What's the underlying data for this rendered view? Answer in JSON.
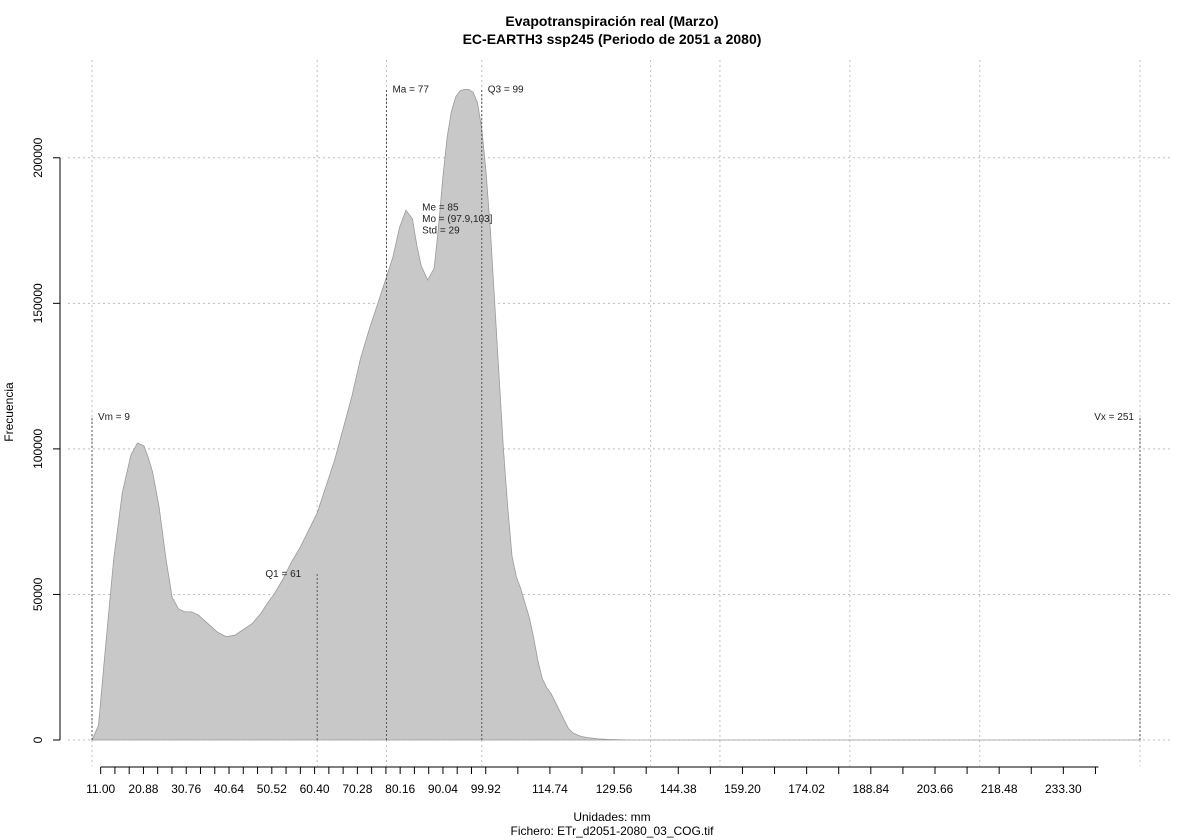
{
  "chart_data": {
    "type": "area",
    "title": "Evapotranspiración real (Marzo)",
    "subtitle": "EC-EARTH3 ssp245 (Periodo de 2051 a 2080)",
    "xlabel": "Unidades: mm",
    "footer": "Fichero: ETr_d2051-2080_03_COG.tif",
    "ylabel": "Frecuencia",
    "xlim": [
      9,
      251
    ],
    "ylim": [
      0,
      225000
    ],
    "grid": true,
    "fill_color": "#c8c8c8",
    "x_ticks": [
      11,
      14.29,
      17.59,
      20.88,
      24.17,
      27.46,
      30.76,
      34.05,
      37.35,
      40.64,
      43.93,
      47.23,
      50.52,
      53.81,
      57.11,
      60.4,
      63.69,
      66.99,
      70.28,
      73.57,
      76.87,
      80.16,
      83.45,
      86.75,
      90.04,
      93.33,
      96.63,
      99.92,
      107.33,
      114.74,
      122.15,
      129.56,
      136.97,
      144.38,
      151.79,
      159.2,
      166.61,
      174.02,
      181.43,
      188.84,
      196.25,
      203.66,
      211.07,
      218.48,
      225.89,
      233.3,
      240.71
    ],
    "x_tick_labels": [
      {
        "x": 11.0,
        "label": "11.00"
      },
      {
        "x": 20.88,
        "label": "20.88"
      },
      {
        "x": 30.76,
        "label": "30.76"
      },
      {
        "x": 40.64,
        "label": "40.64"
      },
      {
        "x": 50.52,
        "label": "50.52"
      },
      {
        "x": 60.4,
        "label": "60.40"
      },
      {
        "x": 70.28,
        "label": "70.28"
      },
      {
        "x": 80.16,
        "label": "80.16"
      },
      {
        "x": 90.04,
        "label": "90.04"
      },
      {
        "x": 99.92,
        "label": "99.92"
      },
      {
        "x": 114.74,
        "label": "114.74"
      },
      {
        "x": 129.56,
        "label": "129.56"
      },
      {
        "x": 144.38,
        "label": "144.38"
      },
      {
        "x": 159.2,
        "label": "159.20"
      },
      {
        "x": 174.02,
        "label": "174.02"
      },
      {
        "x": 188.84,
        "label": "188.84"
      },
      {
        "x": 203.66,
        "label": "203.66"
      },
      {
        "x": 218.48,
        "label": "218.48"
      },
      {
        "x": 233.3,
        "label": "233.30"
      }
    ],
    "grid_x": [
      9,
      61,
      77,
      99,
      138,
      154,
      184,
      214,
      251
    ],
    "y_ticks": [
      0,
      50000,
      100000,
      150000,
      200000
    ],
    "y_tick_labels": [
      "0",
      "50000",
      "100000",
      "150000",
      "200000"
    ],
    "series": [
      {
        "x": [
          9,
          10.5,
          12,
          14,
          16,
          18,
          19.5,
          21,
          22,
          23,
          24.5,
          26,
          27.5,
          29,
          30.5,
          32,
          33.5,
          35,
          36.5,
          38,
          40,
          42,
          44,
          46,
          48,
          49.5,
          51,
          53,
          55,
          57,
          59,
          61,
          63,
          65,
          67,
          69,
          71,
          73,
          75,
          77,
          78.5,
          80,
          81.5,
          83,
          84,
          85,
          86.5,
          88,
          89,
          90,
          91,
          92,
          93,
          94,
          95,
          96,
          97,
          98,
          99,
          100,
          101,
          102,
          103,
          104,
          105,
          106,
          107,
          108,
          109,
          110,
          111,
          112,
          113,
          114,
          115,
          116,
          117,
          118,
          119,
          120,
          121,
          122,
          124,
          126,
          128,
          130,
          132,
          134,
          136,
          138,
          140,
          144,
          148,
          160,
          180,
          200,
          220,
          240,
          251
        ],
        "y": [
          0,
          5000,
          30000,
          62000,
          85000,
          98000,
          102000,
          101000,
          97000,
          92000,
          80000,
          63000,
          49000,
          45000,
          44000,
          44000,
          43000,
          41000,
          39000,
          37000,
          35500,
          36000,
          38000,
          40000,
          43500,
          47000,
          50000,
          55000,
          61000,
          66000,
          72000,
          78000,
          87000,
          96000,
          107000,
          118000,
          131000,
          141000,
          150000,
          159000,
          166000,
          176000,
          182000,
          179000,
          170000,
          163000,
          158000,
          162000,
          176000,
          193000,
          207000,
          216000,
          221000,
          223000,
          223500,
          223500,
          222500,
          219000,
          210000,
          195000,
          175000,
          150000,
          125000,
          100000,
          80000,
          63000,
          56000,
          52000,
          47000,
          42000,
          35000,
          27000,
          21000,
          18000,
          16000,
          13000,
          10000,
          7000,
          4000,
          2500,
          1800,
          1200,
          700,
          400,
          200,
          100,
          50,
          0,
          0,
          0,
          0,
          0,
          0,
          0,
          0,
          0,
          0,
          0,
          0
        ]
      }
    ],
    "annotations": [
      {
        "name": "vm",
        "label": "Vm = 9",
        "x": 9,
        "y_top": 111000
      },
      {
        "name": "q1",
        "label": "Q1 = 61",
        "x": 61,
        "y_top": 57000
      },
      {
        "name": "ma",
        "label": "Ma = 77",
        "x": 77,
        "y_top": 223500
      },
      {
        "name": "q3",
        "label": "Q3 = 99",
        "x": 99,
        "y_top": 223500
      },
      {
        "name": "vx",
        "label": "Vx = 251",
        "x": 251,
        "y_top": 111000
      }
    ],
    "stats_box": {
      "x": 85,
      "y": 183000,
      "lines": [
        "Me = 85",
        "Mo = (97.9,103]",
        "Std = 29"
      ]
    }
  }
}
